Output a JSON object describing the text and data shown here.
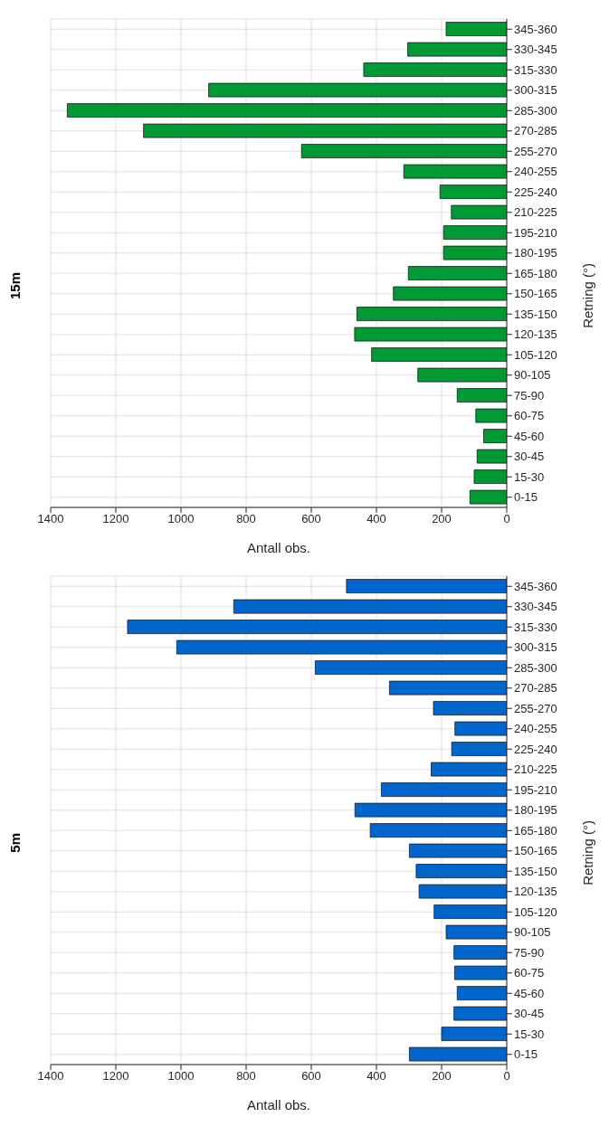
{
  "chart_data": [
    {
      "type": "bar",
      "title": "15m",
      "xlabel": "Antall obs.",
      "ylabel": "Retning (°)",
      "orientation": "horizontal",
      "categories": [
        "345-360",
        "330-345",
        "315-330",
        "300-315",
        "285-300",
        "270-285",
        "255-270",
        "240-255",
        "225-240",
        "210-225",
        "195-210",
        "180-195",
        "165-180",
        "150-165",
        "135-150",
        "120-135",
        "105-120",
        "90-105",
        "75-90",
        "60-75",
        "45-60",
        "30-45",
        "15-30",
        "0-15"
      ],
      "values": [
        186,
        304,
        439,
        915,
        1349,
        1115,
        630,
        316,
        205,
        170,
        194,
        194,
        302,
        348,
        460,
        467,
        415,
        273,
        152,
        95,
        71,
        91,
        100,
        113
      ],
      "color": "#009933",
      "xlim": [
        1400,
        0
      ],
      "xticks": [
        1400,
        1200,
        1000,
        800,
        600,
        400,
        200,
        0
      ],
      "grid": true
    },
    {
      "type": "bar",
      "title": "5m",
      "xlabel": "Antall obs.",
      "ylabel": "Retning (°)",
      "orientation": "horizontal",
      "categories": [
        "345-360",
        "330-345",
        "315-330",
        "300-315",
        "285-300",
        "270-285",
        "255-270",
        "240-255",
        "225-240",
        "210-225",
        "195-210",
        "180-195",
        "165-180",
        "150-165",
        "135-150",
        "120-135",
        "105-120",
        "90-105",
        "75-90",
        "60-75",
        "45-60",
        "30-45",
        "15-30",
        "0-15"
      ],
      "values": [
        492,
        838,
        1164,
        1013,
        588,
        360,
        225,
        159,
        169,
        232,
        385,
        466,
        419,
        299,
        278,
        269,
        223,
        186,
        162,
        160,
        152,
        162,
        200,
        299
      ],
      "color": "#0066cc",
      "xlim": [
        1400,
        0
      ],
      "xticks": [
        1400,
        1200,
        1000,
        800,
        600,
        400,
        200,
        0
      ],
      "grid": true
    }
  ]
}
